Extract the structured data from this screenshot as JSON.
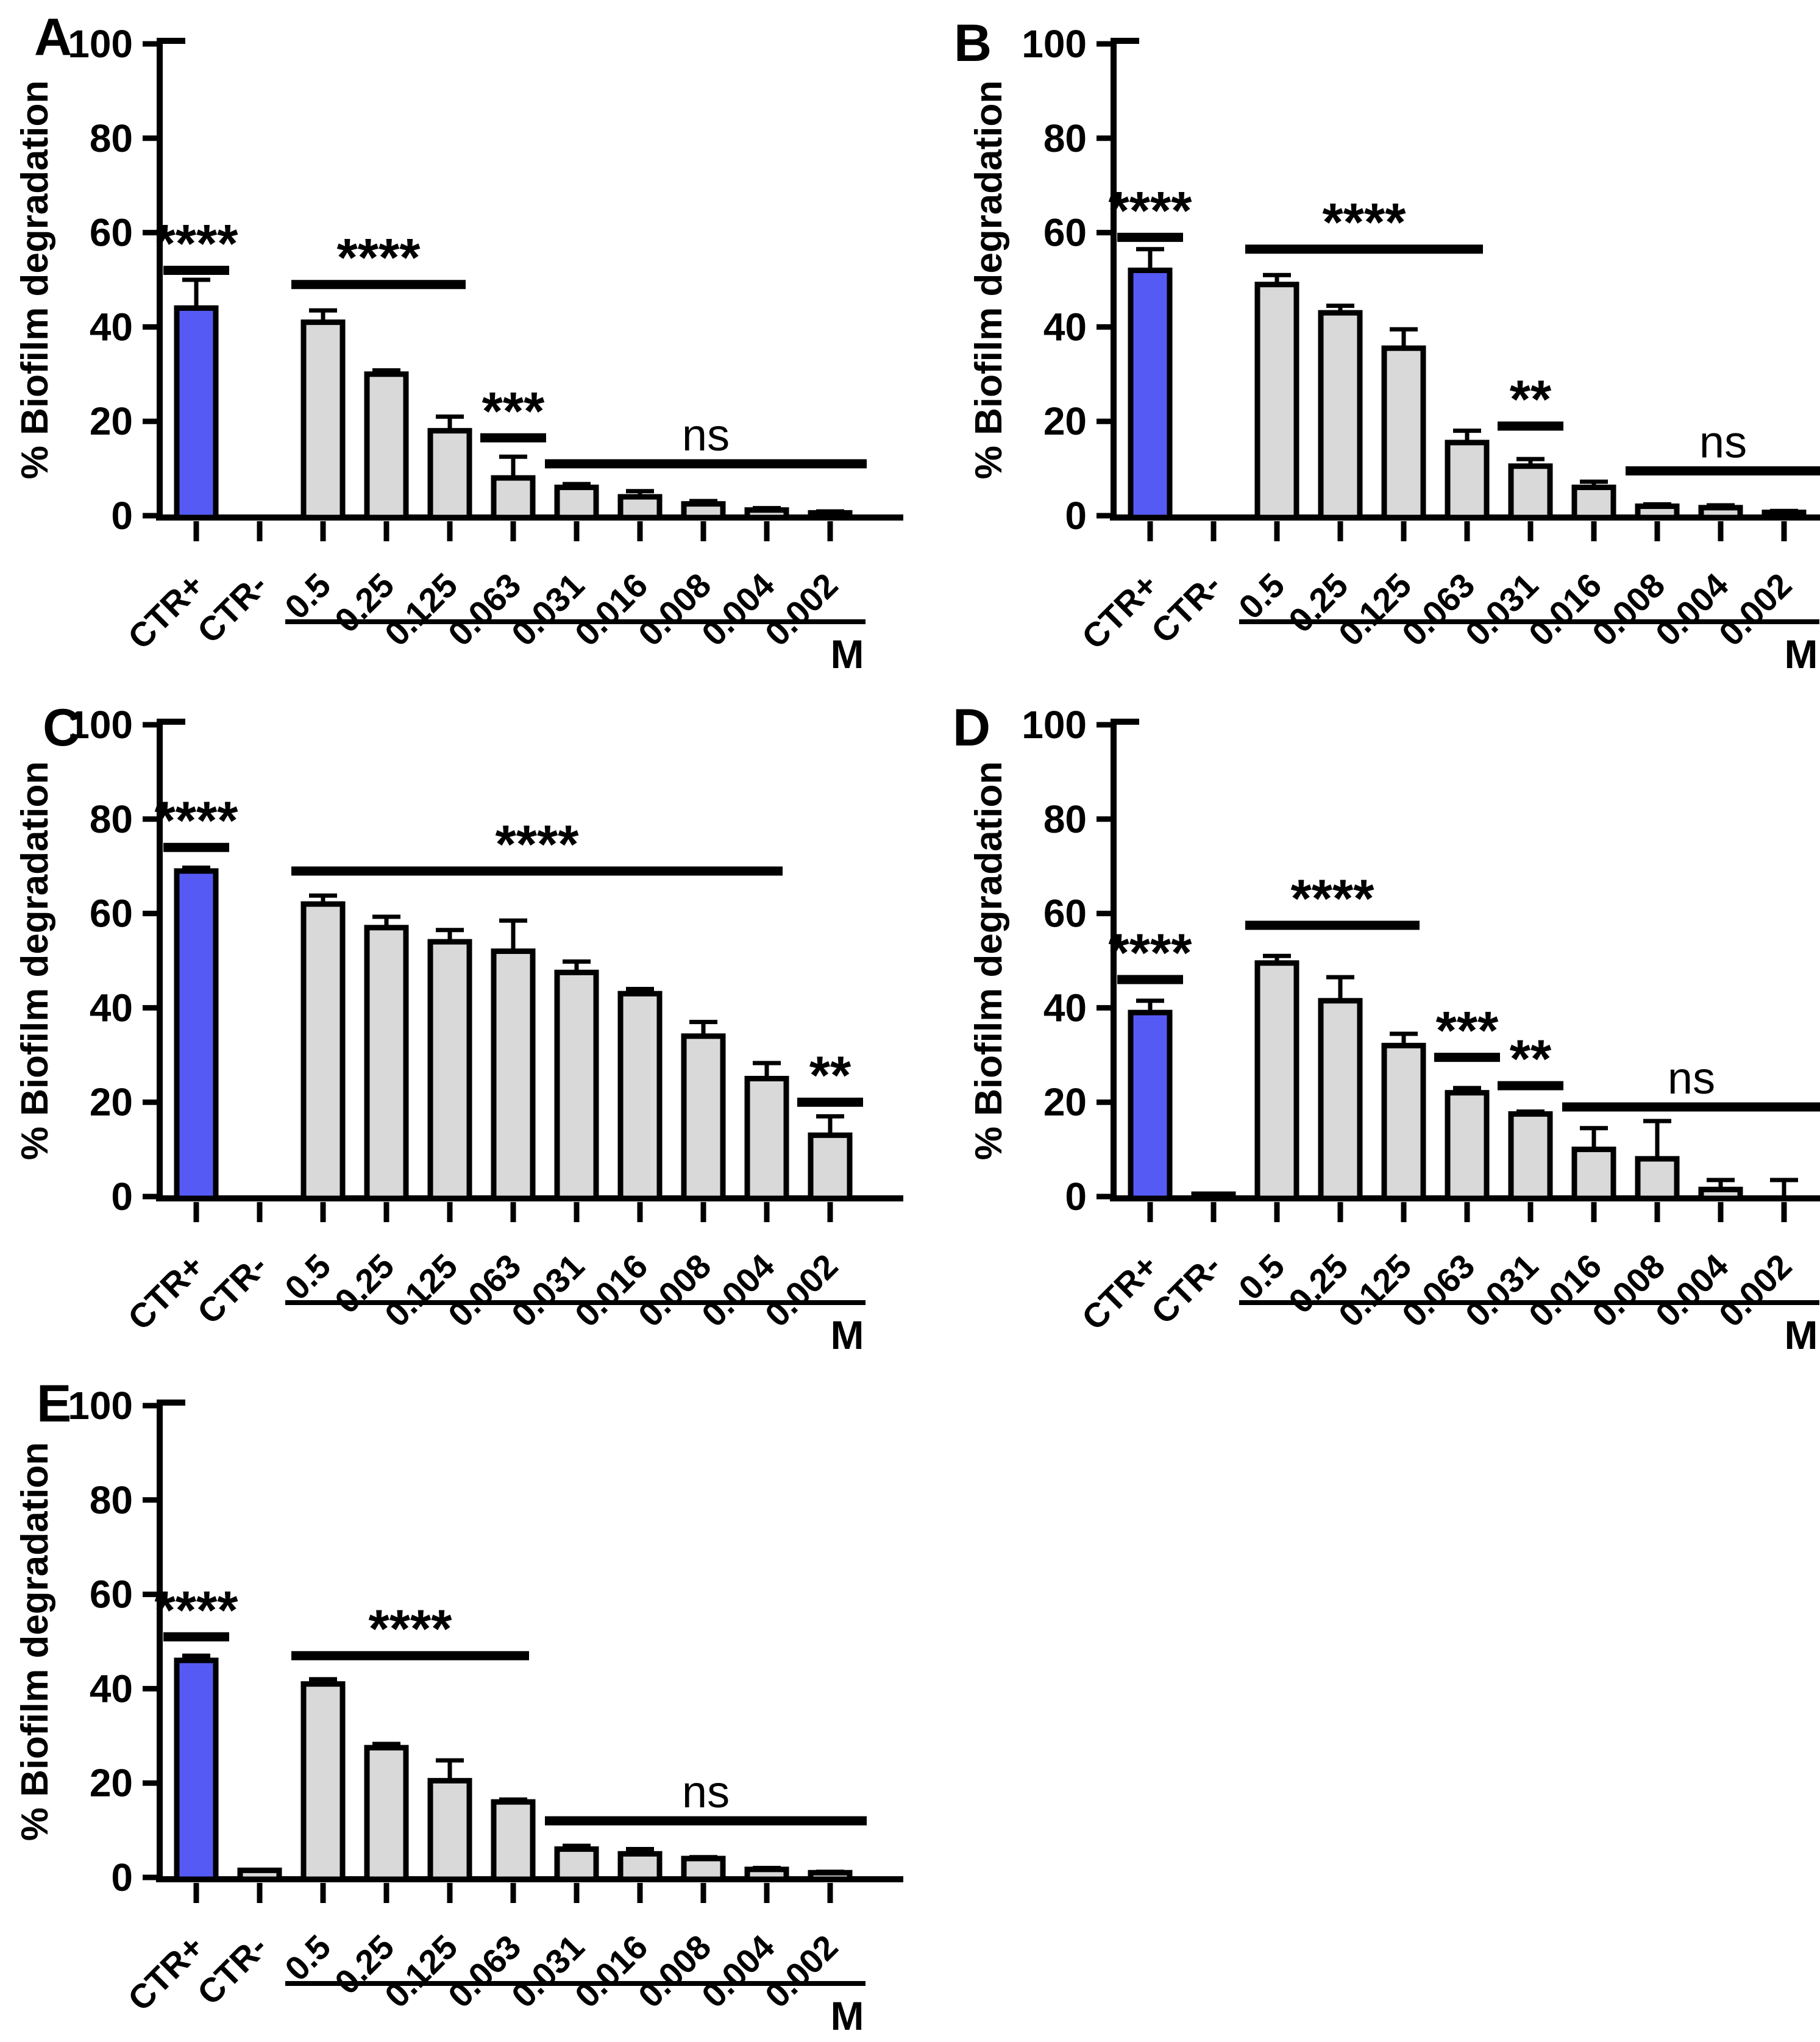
{
  "shared": {
    "ylabel": "% Biofilm degradation",
    "unit_label": "M",
    "ylim": [
      0,
      100
    ],
    "yticks": [
      0,
      20,
      40,
      60,
      80,
      100
    ],
    "categories": [
      "CTR+",
      "CTR-",
      "0.5",
      "0.25",
      "0.125",
      "0.063",
      "0.031",
      "0.016",
      "0.008",
      "0.004",
      "0.002"
    ],
    "colors": {
      "positive_control_fill": "#565af5",
      "treatment_fill": "#d9d9d9",
      "outline": "#000000",
      "background": "#ffffff"
    },
    "grid": false,
    "legend": "none"
  },
  "chart_data": [
    {
      "panel_label": "A",
      "type": "bar",
      "categories": [
        "CTR+",
        "CTR-",
        "0.5",
        "0.25",
        "0.125",
        "0.063",
        "0.031",
        "0.016",
        "0.008",
        "0.004",
        "0.002"
      ],
      "values": [
        44,
        0,
        41,
        30,
        18,
        8,
        6,
        4,
        2.5,
        1.2,
        0.6
      ],
      "errors": [
        6,
        0,
        2.5,
        0.8,
        3,
        4.5,
        0.7,
        1.2,
        0.6,
        0.4,
        0.3
      ],
      "title": "",
      "xlabel": "M",
      "ylabel": "% Biofilm degradation",
      "annotations": [
        {
          "label": "****",
          "from": "CTR+",
          "to": "CTR+",
          "line_y": 52
        },
        {
          "label": "****",
          "from": "0.5",
          "to": "0.125",
          "line_y": 49
        },
        {
          "label": "***",
          "from": "0.063",
          "to": "0.063",
          "line_y": 16.5
        },
        {
          "label": "ns",
          "from": "0.031",
          "to": "0.002",
          "line_y": 11
        }
      ]
    },
    {
      "panel_label": "B",
      "type": "bar",
      "categories": [
        "CTR+",
        "CTR-",
        "0.5",
        "0.25",
        "0.125",
        "0.063",
        "0.031",
        "0.016",
        "0.008",
        "0.004",
        "0.002"
      ],
      "values": [
        52,
        0,
        49,
        43,
        35.5,
        15.5,
        10.5,
        6,
        2,
        1.7,
        0.7
      ],
      "errors": [
        4.5,
        0,
        2,
        1.5,
        4,
        2.5,
        1.5,
        1.2,
        0.4,
        0.5,
        0.3
      ],
      "title": "",
      "xlabel": "M",
      "ylabel": "% Biofilm degradation",
      "annotations": [
        {
          "label": "****",
          "from": "CTR+",
          "to": "CTR+",
          "line_y": 59
        },
        {
          "label": "****",
          "from": "0.5",
          "to": "0.063",
          "line_y": 56.5
        },
        {
          "label": "**",
          "from": "0.031",
          "to": "0.031",
          "line_y": 19
        },
        {
          "label": "ns",
          "from": "0.008",
          "to": "0.002",
          "line_y": 9.5
        }
      ]
    },
    {
      "panel_label": "C",
      "type": "bar",
      "categories": [
        "CTR+",
        "CTR-",
        "0.5",
        "0.25",
        "0.125",
        "0.063",
        "0.031",
        "0.016",
        "0.008",
        "0.004",
        "0.002"
      ],
      "values": [
        69,
        0,
        62,
        57,
        54,
        52,
        47.5,
        43,
        34,
        25,
        13
      ],
      "errors": [
        0.7,
        0,
        1.8,
        2.3,
        2.5,
        6.5,
        2.3,
        1,
        3,
        3.3,
        4
      ],
      "title": "",
      "xlabel": "M",
      "ylabel": "% Biofilm degradation",
      "annotations": [
        {
          "label": "****",
          "from": "CTR+",
          "to": "CTR+",
          "line_y": 74
        },
        {
          "label": "****",
          "from": "0.5",
          "to": "0.004",
          "line_y": 69
        },
        {
          "label": "**",
          "from": "0.002",
          "to": "0.002",
          "line_y": 20
        }
      ]
    },
    {
      "panel_label": "D",
      "type": "bar",
      "categories": [
        "CTR+",
        "CTR-",
        "0.5",
        "0.25",
        "0.125",
        "0.063",
        "0.031",
        "0.016",
        "0.008",
        "0.004",
        "0.002"
      ],
      "values": [
        39,
        0.5,
        49.5,
        41.5,
        32,
        22,
        17.5,
        10,
        8,
        1.5,
        0
      ],
      "errors": [
        2.5,
        0,
        1.5,
        5,
        2.5,
        1,
        0.5,
        4.5,
        8,
        2,
        3.5
      ],
      "title": "",
      "xlabel": "M",
      "ylabel": "% Biofilm degradation",
      "annotations": [
        {
          "label": "****",
          "from": "CTR+",
          "to": "CTR+",
          "line_y": 46
        },
        {
          "label": "****",
          "from": "0.5",
          "to": "0.125",
          "line_y": 57.5
        },
        {
          "label": "***",
          "from": "0.063",
          "to": "0.063",
          "line_y": 29.5
        },
        {
          "label": "**",
          "from": "0.031",
          "to": "0.031",
          "line_y": 23.5
        },
        {
          "label": "ns",
          "from": "0.016",
          "to": "0.002",
          "line_y": 19
        }
      ]
    },
    {
      "panel_label": "E",
      "type": "bar",
      "categories": [
        "CTR+",
        "CTR-",
        "0.5",
        "0.25",
        "0.125",
        "0.063",
        "0.031",
        "0.016",
        "0.008",
        "0.004",
        "0.002"
      ],
      "values": [
        46,
        1.5,
        41,
        27.5,
        20.5,
        16,
        6,
        5,
        4,
        1.7,
        1
      ],
      "errors": [
        1,
        0,
        1,
        0.8,
        4.3,
        0.5,
        0.7,
        1,
        0.3,
        0.3,
        0.2
      ],
      "title": "",
      "xlabel": "M",
      "ylabel": "% Biofilm degradation",
      "annotations": [
        {
          "label": "****",
          "from": "CTR+",
          "to": "CTR+",
          "line_y": 51
        },
        {
          "label": "****",
          "from": "0.5",
          "to": "0.063",
          "line_y": 47
        },
        {
          "label": "ns",
          "from": "0.031",
          "to": "0.002",
          "line_y": 12
        }
      ]
    }
  ]
}
